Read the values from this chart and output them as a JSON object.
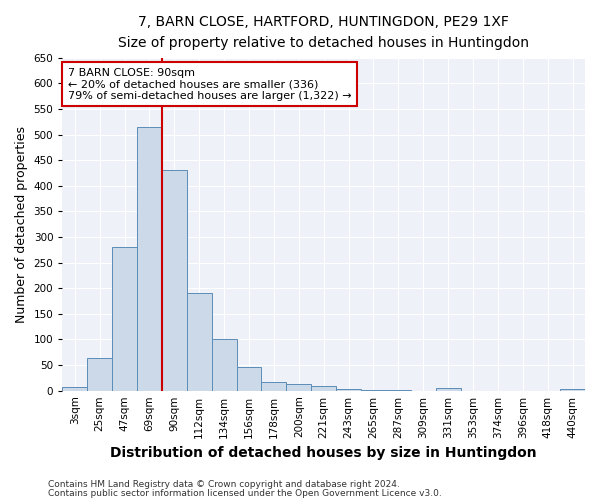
{
  "title1": "7, BARN CLOSE, HARTFORD, HUNTINGDON, PE29 1XF",
  "title2": "Size of property relative to detached houses in Huntingdon",
  "xlabel": "Distribution of detached houses by size in Huntingdon",
  "ylabel": "Number of detached properties",
  "categories": [
    "3sqm",
    "25sqm",
    "47sqm",
    "69sqm",
    "90sqm",
    "112sqm",
    "134sqm",
    "156sqm",
    "178sqm",
    "200sqm",
    "221sqm",
    "243sqm",
    "265sqm",
    "287sqm",
    "309sqm",
    "331sqm",
    "353sqm",
    "374sqm",
    "396sqm",
    "418sqm",
    "440sqm"
  ],
  "bar_values": [
    8,
    64,
    280,
    515,
    430,
    191,
    101,
    47,
    17,
    14,
    9,
    4,
    2,
    1,
    0,
    5,
    0,
    0,
    0,
    0,
    3
  ],
  "bar_color": "#ccd9e8",
  "bar_edge_color": "#5b8db8",
  "vline_x": 3.5,
  "vline_color": "#cc0000",
  "annotation_text": "7 BARN CLOSE: 90sqm\n← 20% of detached houses are smaller (336)\n79% of semi-detached houses are larger (1,322) →",
  "annotation_box_color": "#cc0000",
  "ylim": [
    0,
    650
  ],
  "yticks": [
    0,
    50,
    100,
    150,
    200,
    250,
    300,
    350,
    400,
    450,
    500,
    550,
    600,
    650
  ],
  "footer1": "Contains HM Land Registry data © Crown copyright and database right 2024.",
  "footer2": "Contains public sector information licensed under the Open Government Licence v3.0.",
  "title_fontsize": 10,
  "subtitle_fontsize": 9,
  "axis_label_fontsize": 9,
  "tick_fontsize": 7.5,
  "bg_color": "#eef2f8"
}
